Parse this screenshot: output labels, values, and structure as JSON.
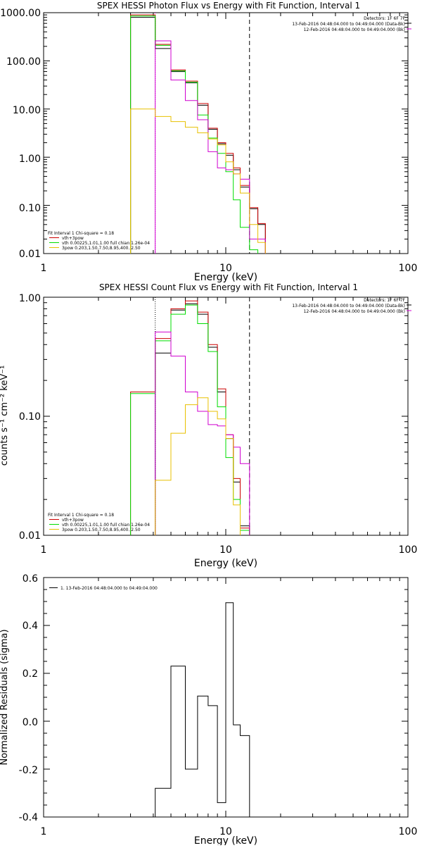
{
  "colors": {
    "black": "#000000",
    "red": "#cc0000",
    "green": "#00dd00",
    "magenta": "#d000d0",
    "orange": "#e8c000"
  },
  "chart_data": [
    {
      "type": "line",
      "title": "SPEX HESSI Photon Flux vs Energy with Fit Function, Interval 1",
      "xlabel": "Energy (keV)",
      "ylabel": "",
      "xscale": "log",
      "yscale": "log",
      "xlim": [
        1,
        100
      ],
      "ylim": [
        0.01,
        1000
      ],
      "xticks": [
        {
          "v": 1,
          "label": "1"
        },
        {
          "v": 10,
          "label": "10"
        },
        {
          "v": 100,
          "label": "100"
        }
      ],
      "yticks": [
        {
          "v": 1000,
          "label": "1000.00"
        },
        {
          "v": 100,
          "label": "100.00"
        },
        {
          "v": 10,
          "label": "10.00"
        },
        {
          "v": 1,
          "label": "1.00"
        },
        {
          "v": 0.1,
          "label": "0.10"
        },
        {
          "v": 0.01,
          "label": "0.01"
        }
      ],
      "vlines": [
        {
          "x": 4.1,
          "style": "dotted",
          "color": "#d000d0"
        },
        {
          "x": 13.5,
          "style": "dashed",
          "color": "#000000"
        }
      ],
      "top_text": [
        "Detectors: 1F 6F 7F",
        "13-Feb-2016 04:48:04.000 to 04:49:04.000 (Data-Bk)",
        "12-Feb-2016 04:48:04.000 to 04:49:04.000 (Bk)"
      ],
      "fit_text": "Fit Interval 1    Chi-square = 0.18",
      "legend": [
        {
          "label": "vth+3pow",
          "color": "#cc0000"
        },
        {
          "label": "vth 0.00225,1.01,1.00  full chian 1.26e-04",
          "color": "#00dd00"
        },
        {
          "label": "3pow 0.203,1.50,7.50,8.95,400.,2.50",
          "color": "#e8c000"
        }
      ],
      "edges": [
        3,
        4.1,
        5,
        6,
        7,
        8,
        9,
        10,
        11,
        12,
        13.5,
        15,
        16.5
      ],
      "series": [
        {
          "color": "#000000",
          "values": [
            800,
            180,
            60,
            35,
            12,
            3.8,
            1.9,
            1.1,
            0.55,
            0.24,
            0.085,
            0.04
          ]
        },
        {
          "color": "#cc0000",
          "values": [
            900,
            220,
            65,
            38,
            13,
            4.0,
            2.0,
            1.2,
            0.6,
            0.26,
            0.09,
            0.042
          ]
        },
        {
          "color": "#00dd00",
          "values": [
            850,
            210,
            62,
            36,
            7.5,
            2.5,
            1.2,
            0.5,
            0.13,
            0.035,
            0.012,
            null
          ]
        },
        {
          "color": "#d000d0",
          "values": [
            null,
            260,
            40,
            15,
            6.0,
            1.3,
            0.6,
            0.55,
            0.45,
            0.35,
            0.02,
            0.02
          ]
        },
        {
          "color": "#e8c000",
          "values": [
            10,
            7,
            5.5,
            4.2,
            3.2,
            2.4,
            1.8,
            0.8,
            0.45,
            0.18,
            0.04,
            0.017
          ]
        }
      ]
    },
    {
      "type": "line",
      "title": "SPEX HESSI Count Flux vs Energy with Fit Function, Interval 1",
      "xlabel": "Energy (keV)",
      "ylabel": "counts s⁻¹ cm⁻² keV⁻¹",
      "xscale": "log",
      "yscale": "log",
      "xlim": [
        1,
        100
      ],
      "ylim": [
        0.01,
        1
      ],
      "xticks": [
        {
          "v": 1,
          "label": "1"
        },
        {
          "v": 10,
          "label": "10"
        },
        {
          "v": 100,
          "label": "100"
        }
      ],
      "yticks": [
        {
          "v": 1,
          "label": "1.00"
        },
        {
          "v": 0.1,
          "label": "0.10"
        },
        {
          "v": 0.01,
          "label": "0.01"
        }
      ],
      "vlines": [
        {
          "x": 4.1,
          "style": "dotted",
          "color": "#000000"
        },
        {
          "x": 13.5,
          "style": "dashed",
          "color": "#000000"
        }
      ],
      "top_text": [
        "Detectors: 1F 6F 7F",
        "13-Feb-2016 04:48:04.000 to 04:49:04.000 (Data-Bk)",
        "12-Feb-2016 04:48:04.000 to 04:49:04.000 (Bk)"
      ],
      "fit_text": "Fit Interval 1    Chi-square = 0.18",
      "legend": [
        {
          "label": "vth+3pow",
          "color": "#cc0000"
        },
        {
          "label": "vth 0.00225,1.01,1.00  full chian 1.26e-04",
          "color": "#00dd00"
        },
        {
          "label": "3pow 0.203,1.50,7.50,8.95,400.,2.50",
          "color": "#e8c000"
        }
      ],
      "edges": [
        3,
        4.1,
        5,
        6,
        7,
        8,
        9,
        10,
        11,
        12,
        13.5
      ],
      "series": [
        {
          "color": "#000000",
          "values": [
            null,
            0.34,
            0.78,
            0.88,
            0.72,
            0.38,
            0.16,
            0.065,
            0.028,
            0.012
          ]
        },
        {
          "color": "#cc0000",
          "values": [
            0.16,
            0.45,
            0.8,
            0.93,
            0.75,
            0.4,
            0.17,
            0.07,
            0.03,
            0.0115
          ]
        },
        {
          "color": "#00dd00",
          "values": [
            0.155,
            0.43,
            0.72,
            0.86,
            0.6,
            0.35,
            0.12,
            0.045,
            0.02,
            0.011
          ]
        },
        {
          "color": "#d000d0",
          "values": [
            null,
            0.51,
            0.32,
            0.16,
            0.11,
            0.085,
            0.083,
            0.07,
            0.055,
            0.04
          ]
        },
        {
          "color": "#e8c000",
          "values": [
            null,
            0.029,
            0.072,
            0.125,
            0.143,
            0.11,
            0.095,
            0.065,
            0.018,
            null
          ]
        }
      ]
    },
    {
      "type": "line",
      "title": "",
      "xlabel": "Energy (keV)",
      "ylabel": "Normalized Residuals (sigma)",
      "xscale": "log",
      "yscale": "linear",
      "xlim": [
        1,
        100
      ],
      "ylim": [
        -0.4,
        0.6
      ],
      "xticks": [
        {
          "v": 1,
          "label": "1"
        },
        {
          "v": 10,
          "label": "10"
        },
        {
          "v": 100,
          "label": "100"
        }
      ],
      "yticks": [
        {
          "v": 0.6,
          "label": "0.6"
        },
        {
          "v": 0.4,
          "label": "0.4"
        },
        {
          "v": 0.2,
          "label": "0.2"
        },
        {
          "v": 0.0,
          "label": "0.0"
        },
        {
          "v": -0.2,
          "label": "-0.2"
        },
        {
          "v": -0.4,
          "label": "-0.4"
        }
      ],
      "legend": [
        {
          "label": "1. 13-Feb-2016 04:48:04.000 to 04:49:04.000",
          "color": "#000000"
        }
      ],
      "edges": [
        4.1,
        5,
        6,
        7,
        8,
        9,
        10,
        11,
        12,
        13.5
      ],
      "series": [
        {
          "color": "#000000",
          "values": [
            -0.28,
            0.23,
            -0.2,
            0.105,
            0.065,
            -0.34,
            0.495,
            -0.015,
            -0.06
          ]
        }
      ]
    }
  ]
}
